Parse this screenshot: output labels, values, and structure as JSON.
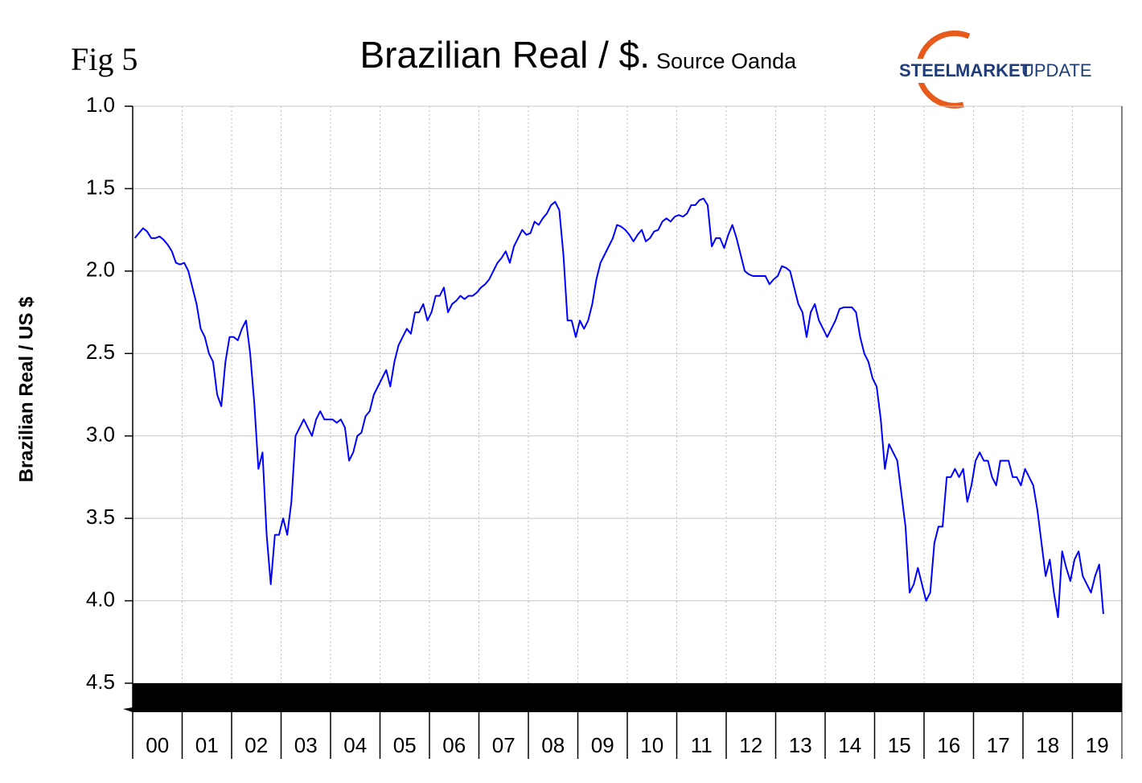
{
  "chart_data": {
    "type": "line",
    "figure_label": "Fig 5",
    "title": "Brazilian Real / $.",
    "subtitle": "Source Oanda",
    "logo": {
      "word1": "STEEL",
      "word2": "MARKET",
      "word3": "UPDATE"
    },
    "y_label": "Brazilian Real / US $",
    "ylim": [
      1.0,
      4.5
    ],
    "y_reversed": true,
    "yticks": [
      {
        "value": 1.0,
        "label": "1.0"
      },
      1.5,
      {
        "value": 2.0,
        "label": "2.0"
      },
      2.5,
      {
        "value": 3.0,
        "label": "3.0"
      },
      3.5,
      {
        "value": 4.0,
        "label": "4.0"
      },
      4.5
    ],
    "grid": true,
    "categories": [
      null,
      null,
      null,
      null,
      null,
      null,
      "00",
      null,
      null,
      null,
      null,
      null,
      null,
      null,
      null,
      null,
      null,
      null,
      "01",
      null,
      null,
      null,
      null,
      null,
      null,
      null,
      null,
      null,
      null,
      null,
      "02",
      null,
      null,
      null,
      null,
      null,
      null,
      null,
      null,
      null,
      null,
      null,
      "03",
      null,
      null,
      null,
      null,
      null,
      null,
      null,
      null,
      null,
      null,
      null,
      "04",
      null,
      null,
      null,
      null,
      null,
      null,
      null,
      null,
      null,
      null,
      null,
      "05",
      null,
      null,
      null,
      null,
      null,
      null,
      null,
      null,
      null,
      null,
      null,
      "06",
      null,
      null,
      null,
      null,
      null,
      null,
      null,
      null,
      null,
      null,
      null,
      "07",
      null,
      null,
      null,
      null,
      null,
      null,
      null,
      null,
      null,
      null,
      null,
      "08",
      null,
      null,
      null,
      null,
      null,
      null,
      null,
      null,
      null,
      null,
      null,
      "09",
      null,
      null,
      null,
      null,
      null,
      null,
      null,
      null,
      null,
      null,
      null,
      "10",
      null,
      null,
      null,
      null,
      null,
      null,
      null,
      null,
      null,
      null,
      null,
      "11",
      null,
      null,
      null,
      null,
      null,
      null,
      null,
      null,
      null,
      null,
      null,
      "12",
      null,
      null,
      null,
      null,
      null,
      null,
      null,
      null,
      null,
      null,
      null,
      "13",
      null,
      null,
      null,
      null,
      null,
      null,
      null,
      null,
      null,
      null,
      null,
      "14",
      null,
      null,
      null,
      null,
      null,
      null,
      null,
      null,
      null,
      null,
      null,
      "15",
      null,
      null,
      null,
      null,
      null,
      null,
      null,
      null,
      null,
      null,
      null,
      "16",
      null,
      null,
      null,
      null,
      null,
      null,
      null,
      null,
      null,
      null,
      null,
      "17",
      null,
      null,
      null,
      null,
      null,
      null,
      null,
      null,
      null,
      null,
      null,
      "18",
      null,
      null,
      null,
      null,
      null,
      null,
      null,
      null,
      null,
      null,
      null,
      "19",
      null,
      null,
      null,
      null,
      null
    ],
    "series": [
      {
        "color": "#0000ff",
        "values": [
          1.8,
          1.77,
          1.74,
          1.76,
          1.8,
          1.8,
          1.79,
          1.81,
          1.84,
          1.88,
          1.95,
          1.96,
          1.95,
          2.0,
          2.1,
          2.2,
          2.35,
          2.4,
          2.5,
          2.55,
          2.75,
          2.82,
          2.55,
          2.4,
          2.4,
          2.42,
          2.35,
          2.3,
          2.5,
          2.8,
          3.2,
          3.1,
          3.6,
          3.9,
          3.6,
          3.6,
          3.5,
          3.6,
          3.4,
          3.0,
          2.95,
          2.9,
          2.95,
          3.0,
          2.9,
          2.85,
          2.9,
          2.9,
          2.9,
          2.92,
          2.9,
          2.95,
          3.15,
          3.1,
          3.0,
          2.98,
          2.88,
          2.85,
          2.75,
          2.7,
          2.65,
          2.6,
          2.7,
          2.55,
          2.45,
          2.4,
          2.35,
          2.38,
          2.25,
          2.25,
          2.2,
          2.3,
          2.25,
          2.15,
          2.15,
          2.1,
          2.25,
          2.2,
          2.18,
          2.15,
          2.17,
          2.15,
          2.15,
          2.13,
          2.1,
          2.08,
          2.05,
          2.0,
          1.95,
          1.92,
          1.88,
          1.95,
          1.85,
          1.8,
          1.75,
          1.78,
          1.77,
          1.7,
          1.72,
          1.68,
          1.65,
          1.6,
          1.58,
          1.63,
          1.9,
          2.3,
          2.3,
          2.4,
          2.3,
          2.35,
          2.3,
          2.2,
          2.05,
          1.95,
          1.9,
          1.85,
          1.8,
          1.72,
          1.73,
          1.75,
          1.78,
          1.82,
          1.78,
          1.75,
          1.82,
          1.8,
          1.76,
          1.75,
          1.7,
          1.68,
          1.7,
          1.67,
          1.66,
          1.67,
          1.65,
          1.6,
          1.6,
          1.57,
          1.56,
          1.6,
          1.85,
          1.8,
          1.8,
          1.86,
          1.78,
          1.72,
          1.8,
          1.9,
          2.0,
          2.02,
          2.03,
          2.03,
          2.03,
          2.03,
          2.08,
          2.05,
          2.03,
          1.97,
          1.98,
          2.0,
          2.1,
          2.2,
          2.25,
          2.4,
          2.25,
          2.2,
          2.3,
          2.35,
          2.4,
          2.35,
          2.3,
          2.23,
          2.22,
          2.22,
          2.22,
          2.25,
          2.4,
          2.5,
          2.55,
          2.65,
          2.7,
          2.9,
          3.2,
          3.05,
          3.1,
          3.15,
          3.35,
          3.55,
          3.95,
          3.9,
          3.8,
          3.9,
          4.0,
          3.95,
          3.65,
          3.55,
          3.55,
          3.25,
          3.25,
          3.2,
          3.25,
          3.2,
          3.4,
          3.3,
          3.15,
          3.1,
          3.15,
          3.15,
          3.25,
          3.3,
          3.15,
          3.15,
          3.15,
          3.25,
          3.25,
          3.3,
          3.2,
          3.25,
          3.3,
          3.45,
          3.65,
          3.85,
          3.75,
          3.95,
          4.1,
          3.7,
          3.8,
          3.88,
          3.75,
          3.7,
          3.85,
          3.9,
          3.95,
          3.85,
          3.78,
          4.08,
          null,
          null,
          null,
          null
        ]
      }
    ]
  }
}
